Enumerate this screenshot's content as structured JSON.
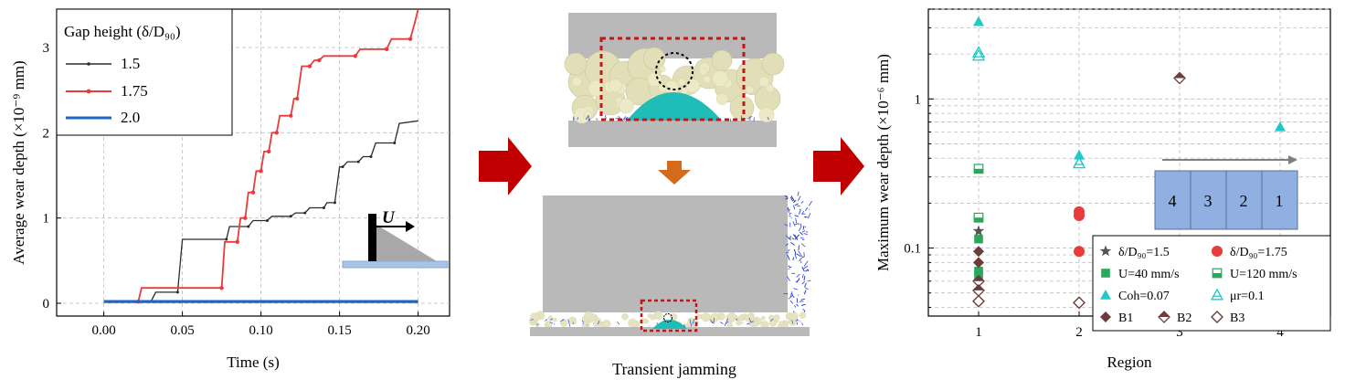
{
  "colors": {
    "s15": "#2b2b2b",
    "s175": "#e83c3c",
    "s20": "#1f66c2",
    "green": "#27a85a",
    "cyan": "#1fc9c6",
    "brown": "#6e3b3b",
    "arrow": "#c00000",
    "plate": "#b3b3b3",
    "region_fill": "#8fb0e0"
  },
  "left_chart": {
    "chart_data": {
      "type": "line",
      "xlabel": "Time (s)",
      "ylabel": "Average wear depth (×10⁻⁹ mm)",
      "xlim": [
        -0.03,
        0.22
      ],
      "ylim": [
        -0.15,
        3.45
      ],
      "xticks": [
        0.0,
        0.05,
        0.1,
        0.15,
        0.2
      ],
      "xtick_labels": [
        "0.00",
        "0.05",
        "0.10",
        "0.15",
        "0.20"
      ],
      "yticks": [
        0,
        1,
        2,
        3
      ],
      "ytick_labels": [
        "0",
        "1",
        "2",
        "3"
      ],
      "grid": true,
      "legend_title": "Gap height (δ/D₉₀)",
      "legend_position": "top-left",
      "series": [
        {
          "name": "1.5",
          "x": [
            0,
            0.03,
            0.033,
            0.047,
            0.05,
            0.078,
            0.08,
            0.092,
            0.095,
            0.104,
            0.107,
            0.119,
            0.122,
            0.128,
            0.131,
            0.14,
            0.142,
            0.147,
            0.15,
            0.152,
            0.155,
            0.162,
            0.165,
            0.17,
            0.173,
            0.185,
            0.188,
            0.2
          ],
          "y": [
            0.02,
            0.02,
            0.13,
            0.13,
            0.75,
            0.75,
            0.9,
            0.9,
            0.97,
            0.97,
            1.02,
            1.02,
            1.06,
            1.06,
            1.12,
            1.12,
            1.18,
            1.18,
            1.6,
            1.6,
            1.66,
            1.66,
            1.72,
            1.72,
            1.88,
            1.88,
            2.11,
            2.14
          ]
        },
        {
          "name": "1.75",
          "x": [
            0,
            0.022,
            0.024,
            0.075,
            0.077,
            0.085,
            0.087,
            0.09,
            0.092,
            0.095,
            0.097,
            0.1,
            0.102,
            0.105,
            0.107,
            0.11,
            0.112,
            0.119,
            0.121,
            0.123,
            0.126,
            0.131,
            0.134,
            0.137,
            0.14,
            0.16,
            0.163,
            0.18,
            0.183,
            0.195,
            0.198,
            0.2
          ],
          "y": [
            0.02,
            0.02,
            0.18,
            0.18,
            0.72,
            0.72,
            1.0,
            1.0,
            1.3,
            1.3,
            1.55,
            1.55,
            1.78,
            1.78,
            2.0,
            2.0,
            2.2,
            2.2,
            2.4,
            2.4,
            2.78,
            2.78,
            2.85,
            2.85,
            2.9,
            2.9,
            2.98,
            2.98,
            3.1,
            3.1,
            3.3,
            3.45
          ]
        },
        {
          "name": "2.0",
          "x": [
            0,
            0.2
          ],
          "y": [
            0.02,
            0.02
          ]
        }
      ],
      "inset_label": "U"
    }
  },
  "middle": {
    "caption": "Transient jamming"
  },
  "right_chart": {
    "chart_data": {
      "type": "scatter",
      "xlabel": "Region",
      "ylabel": "Maximum wear depth (×10⁻⁶ mm)",
      "y_scale": "log",
      "xlim": [
        0.5,
        4.5
      ],
      "ylim": [
        0.035,
        4.0
      ],
      "xticks": [
        1,
        2,
        3,
        4
      ],
      "xtick_labels": [
        "1",
        "2",
        "3",
        "4"
      ],
      "ytick_labels": [
        "0.1",
        "1"
      ],
      "grid": true,
      "legend_position": "bottom-right",
      "series": [
        {
          "name": "δ/D₉₀=1.5",
          "marker": "star",
          "color": "#555555",
          "x": [
            1
          ],
          "y": [
            0.13
          ]
        },
        {
          "name": "δ/D₉₀=1.75",
          "marker": "circle",
          "color": "#e83c3c",
          "x": [
            2,
            2,
            2
          ],
          "y": [
            0.175,
            0.165,
            0.095
          ]
        },
        {
          "name": "U=40 mm/s",
          "marker": "square",
          "color": "#27a85a",
          "x": [
            1,
            1,
            1
          ],
          "y": [
            0.115,
            0.07,
            0.065
          ]
        },
        {
          "name": "U=120 mm/s",
          "marker": "square-half",
          "color": "#27a85a",
          "x": [
            1,
            1
          ],
          "y": [
            0.34,
            0.16
          ]
        },
        {
          "name": "Coh=0.07",
          "marker": "triangle",
          "color": "#1fc9c6",
          "x": [
            1,
            2,
            2,
            4
          ],
          "y": [
            3.3,
            0.42,
            0.38,
            0.65
          ]
        },
        {
          "name": "μr=0.1",
          "marker": "triangle-open",
          "color": "#1fc9c6",
          "x": [
            1,
            1,
            2
          ],
          "y": [
            2.05,
            1.95,
            0.37
          ]
        },
        {
          "name": "B1",
          "marker": "diamond",
          "color": "#6e3b3b",
          "x": [
            1,
            1
          ],
          "y": [
            0.095,
            0.08
          ]
        },
        {
          "name": "B2",
          "marker": "diamond-half",
          "color": "#6e3b3b",
          "x": [
            1,
            1,
            3
          ],
          "y": [
            0.06,
            0.052,
            1.38
          ]
        },
        {
          "name": "B3",
          "marker": "diamond-open",
          "color": "#6e3b3b",
          "x": [
            1,
            2
          ],
          "y": [
            0.044,
            0.043
          ]
        }
      ],
      "legend_entries": {
        "e1": "δ/D₉₀=1.5",
        "e2": "δ/D₉₀=1.75",
        "e3": "U=40 mm/s",
        "e4": "U=120 mm/s",
        "e5": "Coh=0.07",
        "e6": "μr=0.1",
        "e7": "B1",
        "e8": "B2",
        "e9": "B3"
      },
      "inset_regions": [
        "4",
        "3",
        "2",
        "1"
      ]
    }
  }
}
